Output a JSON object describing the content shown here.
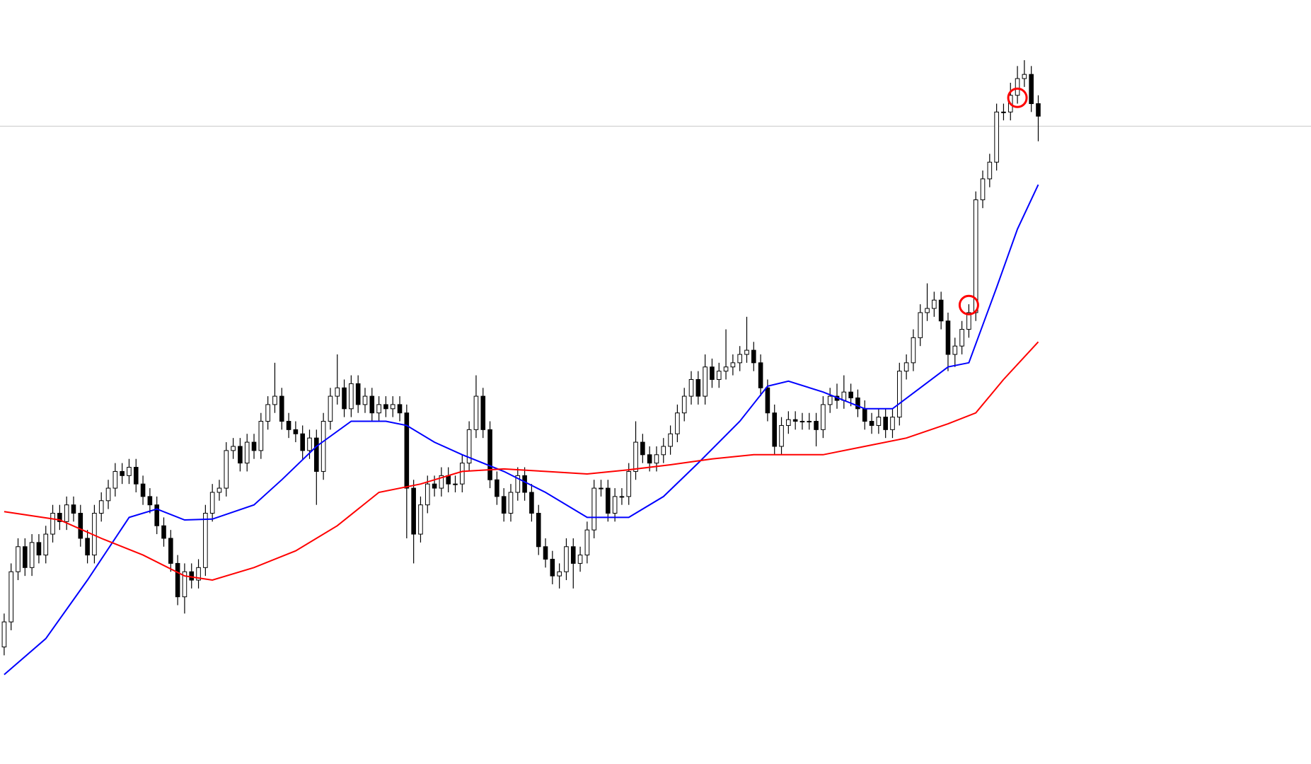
{
  "chart_data": {
    "type": "candlestick",
    "xlim": [
      -0.6,
      188.3
    ],
    "ylim": [
      0,
      914
    ],
    "up_color": "#ffffff",
    "down_color": "#000000",
    "edge_color": "#000000",
    "hline": {
      "value": 763,
      "color": "#c8c8c8"
    },
    "open": [
      140,
      170,
      230,
      260,
      235,
      265,
      250,
      275,
      300,
      290,
      310,
      300,
      270,
      250,
      300,
      315,
      330,
      350,
      345,
      355,
      335,
      320,
      310,
      285,
      270,
      240,
      200,
      230,
      220,
      235,
      300,
      325,
      330,
      375,
      380,
      360,
      385,
      375,
      410,
      430,
      440,
      410,
      400,
      395,
      375,
      390,
      350,
      410,
      440,
      450,
      425,
      455,
      430,
      440,
      420,
      430,
      425,
      430,
      420,
      330,
      275,
      310,
      335,
      330,
      345,
      335,
      335,
      360,
      400,
      440,
      400,
      340,
      320,
      300,
      325,
      345,
      325,
      300,
      260,
      245,
      225,
      230,
      260,
      240,
      250,
      280,
      330,
      330,
      300,
      320,
      320,
      350,
      385,
      370,
      360,
      370,
      380,
      395,
      420,
      440,
      460,
      440,
      475,
      460,
      470,
      475,
      480,
      490,
      495,
      480,
      450,
      420,
      380,
      405,
      412,
      410,
      410,
      410,
      400,
      430,
      440,
      435,
      445,
      438,
      425,
      410,
      405,
      415,
      400,
      415,
      470,
      480,
      510,
      540,
      545,
      555,
      530,
      490,
      500,
      520,
      540,
      675,
      700,
      720,
      780,
      780,
      800,
      820,
      825,
      790
    ],
    "high": [
      180,
      240,
      270,
      270,
      275,
      275,
      285,
      310,
      310,
      320,
      320,
      310,
      280,
      310,
      325,
      340,
      360,
      360,
      365,
      365,
      345,
      330,
      320,
      295,
      280,
      250,
      240,
      240,
      245,
      310,
      335,
      340,
      385,
      390,
      390,
      395,
      395,
      420,
      440,
      480,
      450,
      420,
      410,
      405,
      400,
      400,
      420,
      450,
      490,
      460,
      465,
      465,
      450,
      450,
      440,
      440,
      440,
      440,
      430,
      340,
      320,
      345,
      345,
      355,
      355,
      345,
      370,
      410,
      465,
      450,
      410,
      350,
      330,
      335,
      355,
      355,
      335,
      310,
      270,
      255,
      240,
      270,
      270,
      260,
      290,
      340,
      340,
      340,
      330,
      330,
      360,
      410,
      395,
      380,
      380,
      390,
      405,
      430,
      450,
      470,
      470,
      490,
      485,
      480,
      520,
      490,
      500,
      535,
      505,
      490,
      460,
      430,
      415,
      422,
      422,
      420,
      420,
      420,
      440,
      450,
      455,
      465,
      455,
      448,
      435,
      420,
      425,
      425,
      425,
      480,
      490,
      520,
      550,
      575,
      565,
      565,
      540,
      510,
      530,
      550,
      685,
      710,
      730,
      790,
      790,
      815,
      835,
      842,
      835,
      800
    ],
    "low": [
      130,
      160,
      220,
      225,
      225,
      240,
      240,
      265,
      280,
      280,
      290,
      260,
      240,
      240,
      290,
      305,
      320,
      335,
      335,
      325,
      310,
      300,
      275,
      260,
      230,
      190,
      180,
      210,
      210,
      225,
      290,
      315,
      320,
      365,
      350,
      350,
      365,
      365,
      400,
      420,
      400,
      390,
      385,
      365,
      365,
      310,
      340,
      400,
      430,
      415,
      415,
      420,
      420,
      410,
      410,
      415,
      415,
      410,
      270,
      240,
      265,
      300,
      320,
      320,
      325,
      325,
      325,
      350,
      390,
      390,
      330,
      310,
      290,
      290,
      315,
      315,
      290,
      250,
      235,
      215,
      210,
      220,
      210,
      230,
      240,
      270,
      320,
      290,
      290,
      310,
      310,
      340,
      360,
      350,
      350,
      360,
      370,
      385,
      410,
      430,
      430,
      430,
      450,
      450,
      460,
      465,
      470,
      480,
      470,
      440,
      410,
      370,
      370,
      395,
      400,
      400,
      400,
      380,
      390,
      420,
      425,
      425,
      428,
      415,
      400,
      395,
      395,
      390,
      390,
      405,
      460,
      470,
      500,
      530,
      535,
      520,
      470,
      475,
      490,
      510,
      530,
      665,
      690,
      710,
      770,
      770,
      790,
      810,
      780,
      745
    ],
    "close": [
      170,
      230,
      260,
      235,
      265,
      250,
      275,
      300,
      290,
      310,
      300,
      270,
      250,
      300,
      315,
      330,
      350,
      345,
      355,
      335,
      320,
      310,
      285,
      270,
      240,
      200,
      230,
      220,
      235,
      300,
      325,
      330,
      375,
      380,
      360,
      385,
      375,
      410,
      430,
      440,
      410,
      400,
      395,
      375,
      390,
      350,
      410,
      440,
      450,
      425,
      455,
      430,
      440,
      420,
      430,
      425,
      430,
      420,
      330,
      275,
      310,
      335,
      330,
      345,
      335,
      335,
      360,
      400,
      440,
      400,
      340,
      320,
      300,
      325,
      345,
      325,
      300,
      260,
      245,
      225,
      230,
      260,
      240,
      250,
      280,
      330,
      330,
      300,
      320,
      320,
      350,
      385,
      370,
      360,
      370,
      380,
      395,
      420,
      440,
      460,
      440,
      475,
      460,
      470,
      475,
      480,
      490,
      495,
      480,
      450,
      420,
      380,
      405,
      412,
      410,
      410,
      410,
      400,
      430,
      440,
      435,
      445,
      438,
      425,
      410,
      405,
      415,
      400,
      415,
      470,
      480,
      510,
      540,
      545,
      555,
      530,
      490,
      500,
      520,
      540,
      675,
      700,
      720,
      780,
      780,
      800,
      820,
      825,
      790,
      775
    ],
    "lines": [
      {
        "color": "#0000ff",
        "x": [
          0,
          6,
          12,
          18,
          22,
          26,
          30,
          36,
          40,
          45,
          50,
          55,
          58,
          62,
          66,
          72,
          78,
          84,
          90,
          95,
          100,
          106,
          110,
          113,
          118,
          124,
          128,
          132,
          136,
          139,
          143,
          146,
          149
        ],
        "values": [
          107,
          150,
          220,
          295,
          305,
          292,
          293,
          310,
          340,
          380,
          410,
          410,
          405,
          385,
          370,
          350,
          325,
          295,
          295,
          320,
          360,
          410,
          452,
          458,
          445,
          425,
          425,
          450,
          475,
          480,
          570,
          640,
          693
        ]
      },
      {
        "color": "#ff0000",
        "x": [
          0,
          8,
          14,
          20,
          26,
          30,
          36,
          42,
          48,
          54,
          60,
          66,
          72,
          78,
          84,
          90,
          96,
          102,
          108,
          114,
          118,
          124,
          130,
          136,
          140,
          144,
          149
        ],
        "values": [
          302,
          292,
          270,
          250,
          225,
          220,
          235,
          255,
          285,
          325,
          335,
          350,
          353,
          350,
          347,
          352,
          358,
          365,
          370,
          370,
          370,
          380,
          390,
          407,
          420,
          460,
          505
        ]
      }
    ],
    "markers": {
      "color": "#ff0000",
      "x": [
        139,
        146
      ],
      "values": [
        549,
        797
      ]
    }
  }
}
